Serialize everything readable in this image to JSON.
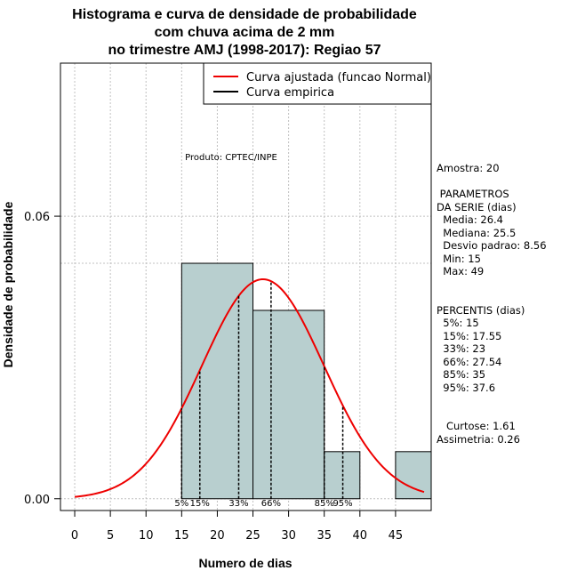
{
  "chart_data": {
    "type": "histogram",
    "title_lines": [
      "Histograma e curva de densidade de probabilidade",
      "com chuva acima de 2 mm",
      "no trimestre AMJ (1998-2017): Regiao 57"
    ],
    "xlabel": "Numero de dias",
    "ylabel": "Densidade de probabilidade",
    "xlim": [
      -2,
      50
    ],
    "ylim": [
      -0.0025,
      0.0925
    ],
    "x_ticks": [
      0,
      5,
      10,
      15,
      20,
      25,
      30,
      35,
      40,
      45
    ],
    "y_ticks": [
      0.0,
      0.06
    ],
    "y_tick_labels": [
      "0.00",
      "0.06"
    ],
    "bins": [
      {
        "x0": 15,
        "x1": 25,
        "density": 0.05
      },
      {
        "x0": 25,
        "x1": 35,
        "density": 0.04
      },
      {
        "x0": 35,
        "x1": 40,
        "density": 0.01
      },
      {
        "x0": 40,
        "x1": 45,
        "density": 0.0
      },
      {
        "x0": 45,
        "x1": 50,
        "density": 0.01
      }
    ],
    "empirical_line_density": 0.05,
    "normal_fit": {
      "mean": 26.4,
      "sd": 8.56,
      "x_from": 0,
      "x_to": 49
    },
    "percentile_markers": [
      {
        "label": "5%",
        "x": 15
      },
      {
        "label": "15%",
        "x": 17.55
      },
      {
        "label": "33%",
        "x": 23
      },
      {
        "label": "66%",
        "x": 27.54
      },
      {
        "label": "85%",
        "x": 35
      },
      {
        "label": "95%",
        "x": 37.6
      }
    ],
    "legend": [
      {
        "label": "Curva ajustada (funcao Normal)",
        "color": "#ee0000"
      },
      {
        "label": "Curva empirica",
        "color": "#000000"
      }
    ],
    "legend_position": "top-right",
    "annotation": "Produto: CPTEC/INPE",
    "colors": {
      "bar_fill": "#b8cfcf",
      "normal_curve": "#ee0000",
      "grid": "#c0c0c0"
    }
  },
  "stats_panel": {
    "lines": [
      "Amostra: 20",
      "",
      " PARAMETROS",
      "DA SERIE (dias)",
      "  Media: 26.4",
      "  Mediana: 25.5",
      "  Desvio padrao: 8.56",
      "  Min: 15",
      "  Max: 49",
      "",
      "",
      "PERCENTIS (dias)",
      "  5%: 15",
      "  15%: 17.55",
      "  33%: 23",
      "  66%: 27.54",
      "  85%: 35",
      "  95%: 37.6",
      "",
      "",
      "   Curtose: 1.61",
      "Assimetria: 0.26"
    ]
  }
}
